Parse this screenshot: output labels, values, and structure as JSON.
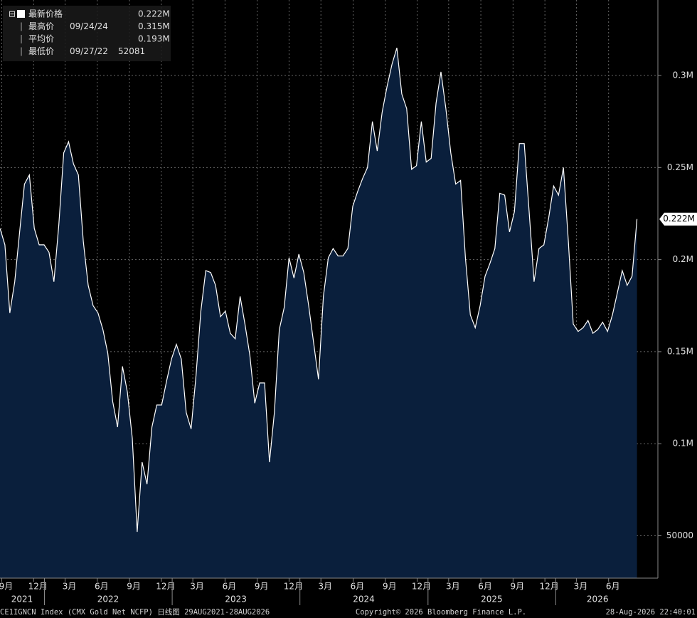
{
  "chart_data": {
    "type": "area",
    "series": [
      {
        "name": "最新价格",
        "color": "#ffffff",
        "fill": "#0a1f3c",
        "values": [
          217000,
          208000,
          171000,
          188000,
          215000,
          241000,
          246000,
          217000,
          208000,
          208000,
          204000,
          188000,
          219000,
          258000,
          264000,
          252000,
          246000,
          210000,
          186000,
          175000,
          171000,
          162000,
          149000,
          123000,
          109000,
          142000,
          128000,
          103000,
          52081,
          90000,
          78000,
          109000,
          121000,
          121000,
          134000,
          146000,
          154000,
          146000,
          117000,
          108000,
          137000,
          172000,
          194000,
          193000,
          186000,
          169000,
          172000,
          160000,
          157000,
          180000,
          165000,
          148000,
          122000,
          133000,
          133000,
          90000,
          117000,
          162000,
          174000,
          201000,
          190000,
          203000,
          193000,
          175000,
          155000,
          135000,
          180000,
          201000,
          206000,
          202000,
          202000,
          206000,
          229000,
          237000,
          244000,
          250000,
          275000,
          259000,
          280000,
          294000,
          306000,
          315000,
          290000,
          282000,
          249000,
          251000,
          275000,
          253000,
          255000,
          285000,
          302000,
          282000,
          258000,
          241000,
          243000,
          201000,
          170000,
          163000,
          175000,
          191000,
          198000,
          206000,
          236000,
          235000,
          215000,
          226000,
          263000,
          263000,
          226000,
          188000,
          206000,
          208000,
          223000,
          240000,
          235000,
          250000,
          210000,
          165000,
          161000,
          163000,
          167000,
          160000,
          162000,
          166000,
          161000,
          170000,
          182000,
          194000,
          186000,
          191000,
          222000
        ]
      }
    ],
    "x": [
      "2021-08-27",
      "2021-09-10",
      "2021-09-24",
      "2021-10-08",
      "2021-10-22",
      "2021-11-05",
      "2021-11-19",
      "2021-12-03",
      "2021-12-17",
      "2021-12-31",
      "2022-01-14",
      "2022-01-28",
      "2022-02-11",
      "2022-02-25",
      "2022-03-11",
      "2022-03-25",
      "2022-04-08",
      "2022-04-22",
      "2022-05-06",
      "2022-05-20",
      "2022-06-03",
      "2022-06-17",
      "2022-07-01",
      "2022-07-15",
      "2022-07-29",
      "2022-08-12",
      "2022-08-26",
      "2022-09-09",
      "2022-09-23",
      "2022-10-07",
      "2022-10-21",
      "2022-11-04",
      "2022-11-18",
      "2022-12-02",
      "2022-12-16",
      "2022-12-30",
      "2023-01-13",
      "2023-01-27",
      "2023-02-10",
      "2023-02-24",
      "2023-03-10",
      "2023-03-24",
      "2023-04-07",
      "2023-04-21",
      "2023-05-05",
      "2023-05-19",
      "2023-06-02",
      "2023-06-16",
      "2023-06-30",
      "2023-07-14",
      "2023-07-28",
      "2023-08-11",
      "2023-08-25",
      "2023-09-08",
      "2023-09-22",
      "2023-10-06",
      "2023-10-20",
      "2023-11-03",
      "2023-11-17",
      "2023-12-01",
      "2023-12-15",
      "2023-12-29",
      "2024-01-12",
      "2024-01-26",
      "2024-02-09",
      "2024-02-23",
      "2024-03-08",
      "2024-03-22",
      "2024-04-05",
      "2024-04-19",
      "2024-05-03",
      "2024-05-17",
      "2024-05-31",
      "2024-06-14",
      "2024-06-28",
      "2024-07-12",
      "2024-07-26",
      "2024-08-09",
      "2024-08-23",
      "2024-09-06",
      "2024-09-20",
      "2024-10-04",
      "2024-10-18",
      "2024-11-01",
      "2024-11-15",
      "2024-11-29",
      "2024-12-13",
      "2024-12-27",
      "2025-01-10",
      "2025-01-24",
      "2025-02-07",
      "2025-02-21",
      "2025-03-07",
      "2025-03-21",
      "2025-04-04",
      "2025-04-18",
      "2025-05-02",
      "2025-05-16",
      "2025-05-30",
      "2025-06-13",
      "2025-06-27",
      "2025-07-11",
      "2025-07-25",
      "2025-08-08",
      "2025-08-22",
      "2025-09-05",
      "2025-09-19",
      "2025-10-03",
      "2025-10-17",
      "2025-10-31",
      "2025-11-14",
      "2025-11-28",
      "2025-12-12",
      "2025-12-26",
      "2026-01-09",
      "2026-01-23",
      "2026-02-06",
      "2026-02-20",
      "2026-03-06",
      "2026-03-20",
      "2026-04-03",
      "2026-04-17",
      "2026-05-01",
      "2026-05-15",
      "2026-05-29",
      "2026-06-12",
      "2026-06-26",
      "2026-07-10",
      "2026-07-24",
      "2026-08-07",
      "2026-08-21"
    ],
    "xlim": [
      "2021-08-27",
      "2026-08-28"
    ],
    "xticks": [
      {
        "value": "2021-09-01",
        "label": "9月"
      },
      {
        "value": "2021-12-01",
        "label": "12月"
      },
      {
        "value": "2022-03-01",
        "label": "3月"
      },
      {
        "value": "2022-06-01",
        "label": "6月"
      },
      {
        "value": "2022-09-01",
        "label": "9月"
      },
      {
        "value": "2022-12-01",
        "label": "12月"
      },
      {
        "value": "2023-03-01",
        "label": "3月"
      },
      {
        "value": "2023-06-01",
        "label": "6月"
      },
      {
        "value": "2023-09-01",
        "label": "9月"
      },
      {
        "value": "2023-12-01",
        "label": "12月"
      },
      {
        "value": "2024-03-01",
        "label": "3月"
      },
      {
        "value": "2024-06-01",
        "label": "6月"
      },
      {
        "value": "2024-09-01",
        "label": "9月"
      },
      {
        "value": "2024-12-01",
        "label": "12月"
      },
      {
        "value": "2025-03-01",
        "label": "3月"
      },
      {
        "value": "2025-06-01",
        "label": "6月"
      },
      {
        "value": "2025-09-01",
        "label": "9月"
      },
      {
        "value": "2025-12-01",
        "label": "12月"
      },
      {
        "value": "2026-03-01",
        "label": "3月"
      },
      {
        "value": "2026-06-01",
        "label": "6月"
      }
    ],
    "years": [
      2021,
      2022,
      2023,
      2024,
      2025,
      2026
    ],
    "ylim": [
      27000,
      341000
    ],
    "yticks": [
      50000,
      {
        "value": 100000,
        "label": "0.1M"
      },
      {
        "value": 150000,
        "label": "0.15M"
      },
      {
        "value": 200000,
        "label": "0.2M"
      },
      {
        "value": 250000,
        "label": "0.25M"
      },
      {
        "value": 300000,
        "label": "0.3M"
      }
    ],
    "grid": true,
    "last_value_label": "0.222M",
    "legend": [
      {
        "name": "最新价格",
        "value": "0.222M"
      },
      {
        "name": "最高价",
        "date": "09/24/24",
        "value": "0.315M"
      },
      {
        "name": "平均价",
        "value": "0.193M"
      },
      {
        "name": "最低价",
        "date": "09/27/22",
        "value": "52081"
      }
    ],
    "footer": {
      "left": "CE1IGNCN Index (CMX Gold Net NCFP) 日线图 29AUG2021-28AUG2026",
      "center": "Copyright© 2026 Bloomberg Finance L.P.",
      "right": "28-Aug-2026 22:40:01"
    }
  }
}
